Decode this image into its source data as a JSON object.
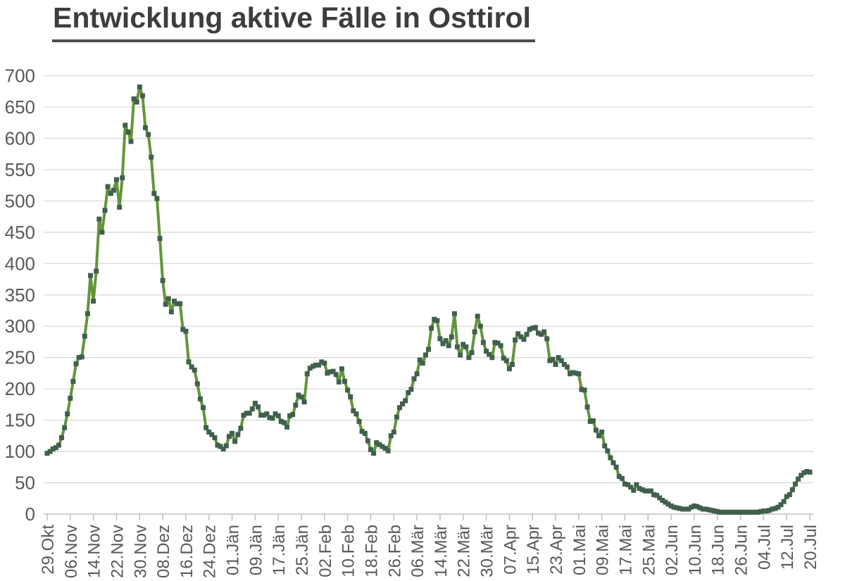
{
  "title": "Entwicklung aktive Fälle in Osttirol",
  "colors": {
    "title": "#3d3d3d",
    "underline": "#4d4d4d",
    "axis_labels": "#595959",
    "gridline": "#d9d9d9",
    "axis_line": "#bfbfbf",
    "line": "#64943c",
    "marker": "#40604d",
    "background": "#ffffff"
  },
  "chart_data": {
    "type": "line",
    "title": "Entwicklung aktive Fälle in Osttirol",
    "xlabel": "",
    "ylabel": "",
    "ylim": [
      0,
      700
    ],
    "y_ticks": [
      0,
      50,
      100,
      150,
      200,
      250,
      300,
      350,
      400,
      450,
      500,
      550,
      600,
      650,
      700
    ],
    "grid": true,
    "legend": false,
    "marker_shape": "square",
    "points_per_x_tick": 8,
    "x_tick_labels": [
      "29.Okt",
      "06.Nov",
      "14.Nov",
      "22.Nov",
      "30.Nov",
      "08.Dez",
      "16.Dez",
      "24.Dez",
      "01.Jän",
      "09.Jän",
      "17.Jän",
      "25.Jän",
      "02.Feb",
      "10.Feb",
      "18.Feb",
      "26.Feb",
      "06.Mär",
      "14.Mär",
      "22.Mär",
      "30.Mär",
      "07.Apr",
      "15.Apr",
      "23.Apr",
      "01.Mai",
      "09.Mai",
      "17.Mai",
      "25.Mai",
      "02.Jun",
      "10.Jun",
      "18.Jun",
      "26.Jun",
      "04.Jul",
      "12.Jul",
      "20.Jul"
    ],
    "values": [
      97,
      100,
      104,
      106,
      110,
      122,
      138,
      160,
      185,
      212,
      240,
      250,
      251,
      284,
      320,
      381,
      340,
      388,
      471,
      450,
      485,
      523,
      512,
      517,
      534,
      490,
      537,
      621,
      610,
      595,
      663,
      658,
      682,
      668,
      617,
      606,
      570,
      512,
      504,
      440,
      373,
      335,
      344,
      323,
      340,
      336,
      336,
      295,
      292,
      243,
      235,
      230,
      208,
      184,
      170,
      138,
      131,
      127,
      122,
      110,
      108,
      104,
      109,
      124,
      129,
      116,
      127,
      137,
      158,
      161,
      161,
      168,
      177,
      171,
      158,
      158,
      160,
      154,
      153,
      160,
      157,
      148,
      146,
      139,
      157,
      159,
      174,
      190,
      187,
      179,
      224,
      233,
      236,
      238,
      238,
      243,
      241,
      225,
      227,
      228,
      223,
      211,
      232,
      212,
      198,
      187,
      165,
      160,
      148,
      132,
      129,
      117,
      103,
      97,
      114,
      111,
      108,
      105,
      101,
      125,
      131,
      155,
      170,
      176,
      181,
      194,
      199,
      216,
      224,
      246,
      241,
      254,
      263,
      297,
      311,
      309,
      280,
      272,
      277,
      269,
      283,
      320,
      267,
      254,
      271,
      267,
      250,
      258,
      291,
      316,
      300,
      274,
      260,
      255,
      250,
      274,
      273,
      269,
      249,
      245,
      232,
      239,
      278,
      288,
      283,
      279,
      287,
      295,
      297,
      298,
      289,
      287,
      291,
      280,
      245,
      247,
      239,
      250,
      245,
      239,
      235,
      224,
      226,
      225,
      224,
      199,
      198,
      171,
      148,
      149,
      134,
      125,
      131,
      109,
      101,
      90,
      82,
      75,
      60,
      57,
      48,
      47,
      43,
      38,
      47,
      41,
      39,
      37,
      37,
      37,
      31,
      30,
      26,
      22,
      19,
      16,
      13,
      11,
      10,
      9,
      8,
      8,
      8,
      11,
      13,
      12,
      10,
      8,
      8,
      7,
      6,
      5,
      4,
      3,
      3,
      3,
      3,
      3,
      3,
      3,
      3,
      3,
      3,
      3,
      3,
      3,
      3,
      4,
      5,
      5,
      6,
      8,
      9,
      11,
      15,
      20,
      28,
      31,
      39,
      48,
      56,
      62,
      66,
      68,
      67
    ]
  }
}
